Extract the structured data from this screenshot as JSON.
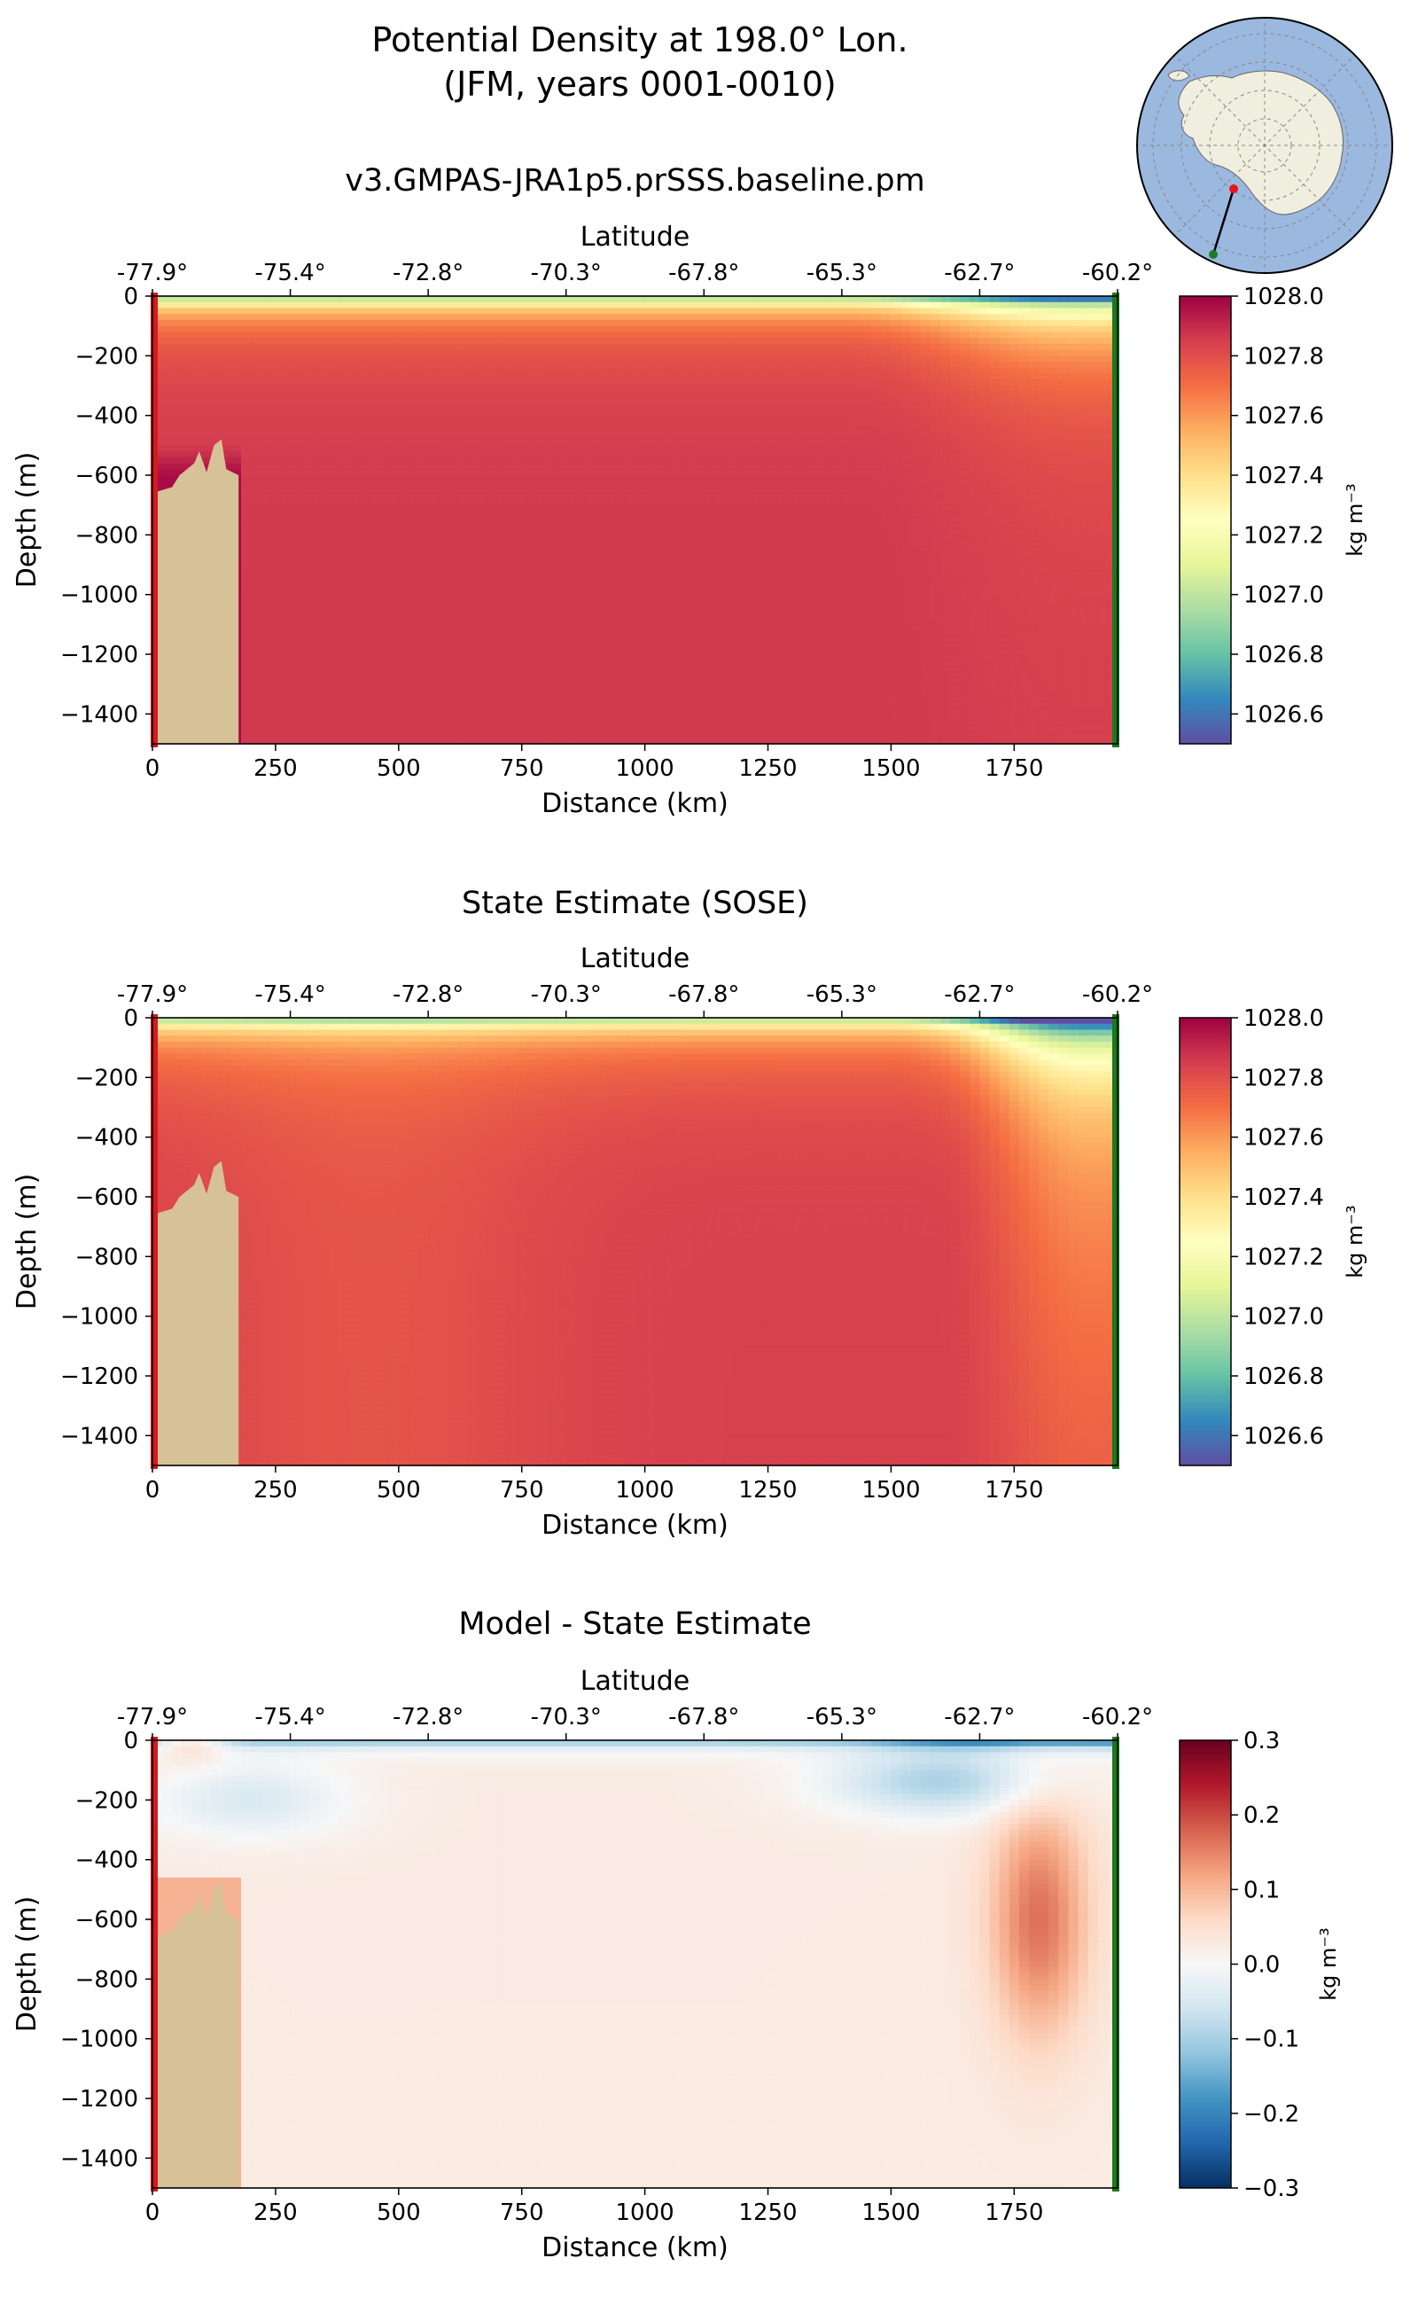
{
  "figure": {
    "title_line1": "Potential Density at 198.0° Lon.",
    "title_line2": "(JFM, years 0001-0010)"
  },
  "map_inset": {
    "ocean_color": "#9bb8df",
    "land_color": "#efeedf",
    "transect_start_color": "#e8161b",
    "transect_end_color": "#1f7a2d"
  },
  "chart_data": [
    {
      "type": "heatmap",
      "title": "v3.GMPAS-JRA1p5.prSSS.baseline.pm",
      "xlabel": "Distance (km)",
      "ylabel": "Depth (m)",
      "top_axis_label": "Latitude",
      "xlim": [
        0,
        1960
      ],
      "ylim": [
        -1500,
        0
      ],
      "x_ticks": [
        0,
        250,
        500,
        750,
        1000,
        1250,
        1500,
        1750
      ],
      "y_ticks": [
        0,
        -200,
        -400,
        -600,
        -800,
        -1000,
        -1200,
        -1400
      ],
      "x_tick_labels": [
        "0",
        "250",
        "500",
        "750",
        "1000",
        "1250",
        "1500",
        "1750"
      ],
      "y_tick_labels": [
        "0",
        "−200",
        "−400",
        "−600",
        "−800",
        "−1000",
        "−1200",
        "−1400"
      ],
      "lat_tick_labels": [
        "-77.9°",
        "-75.4°",
        "-72.8°",
        "-70.3°",
        "-67.8°",
        "-65.3°",
        "-62.7°",
        "-60.2°"
      ],
      "colorbar": {
        "label": "kg m⁻³",
        "range": [
          1026.5,
          1028.0
        ],
        "ticks": [
          1026.6,
          1026.8,
          1027.0,
          1027.2,
          1027.4,
          1027.6,
          1027.8,
          1028.0
        ],
        "tick_labels": [
          "1026.6",
          "1026.8",
          "1027.0",
          "1027.2",
          "1027.4",
          "1027.6",
          "1027.8",
          "1028.0"
        ],
        "colormap": "Spectral_r"
      }
    },
    {
      "type": "heatmap",
      "title": "State Estimate (SOSE)",
      "xlabel": "Distance (km)",
      "ylabel": "Depth (m)",
      "top_axis_label": "Latitude",
      "xlim": [
        0,
        1960
      ],
      "ylim": [
        -1500,
        0
      ],
      "x_ticks": [
        0,
        250,
        500,
        750,
        1000,
        1250,
        1500,
        1750
      ],
      "y_ticks": [
        0,
        -200,
        -400,
        -600,
        -800,
        -1000,
        -1200,
        -1400
      ],
      "x_tick_labels": [
        "0",
        "250",
        "500",
        "750",
        "1000",
        "1250",
        "1500",
        "1750"
      ],
      "y_tick_labels": [
        "0",
        "−200",
        "−400",
        "−600",
        "−800",
        "−1000",
        "−1200",
        "−1400"
      ],
      "lat_tick_labels": [
        "-77.9°",
        "-75.4°",
        "-72.8°",
        "-70.3°",
        "-67.8°",
        "-65.3°",
        "-62.7°",
        "-60.2°"
      ],
      "colorbar": {
        "label": "kg m⁻³",
        "range": [
          1026.5,
          1028.0
        ],
        "ticks": [
          1026.6,
          1026.8,
          1027.0,
          1027.2,
          1027.4,
          1027.6,
          1027.8,
          1028.0
        ],
        "tick_labels": [
          "1026.6",
          "1026.8",
          "1027.0",
          "1027.2",
          "1027.4",
          "1027.6",
          "1027.8",
          "1028.0"
        ],
        "colormap": "Spectral_r"
      }
    },
    {
      "type": "heatmap",
      "title": "Model - State Estimate",
      "xlabel": "Distance (km)",
      "ylabel": "Depth (m)",
      "top_axis_label": "Latitude",
      "xlim": [
        0,
        1960
      ],
      "ylim": [
        -1500,
        0
      ],
      "x_ticks": [
        0,
        250,
        500,
        750,
        1000,
        1250,
        1500,
        1750
      ],
      "y_ticks": [
        0,
        -200,
        -400,
        -600,
        -800,
        -1000,
        -1200,
        -1400
      ],
      "x_tick_labels": [
        "0",
        "250",
        "500",
        "750",
        "1000",
        "1250",
        "1500",
        "1750"
      ],
      "y_tick_labels": [
        "0",
        "−200",
        "−400",
        "−600",
        "−800",
        "−1000",
        "−1200",
        "−1400"
      ],
      "lat_tick_labels": [
        "-77.9°",
        "-75.4°",
        "-72.8°",
        "-70.3°",
        "-67.8°",
        "-65.3°",
        "-62.7°",
        "-60.2°"
      ],
      "colorbar": {
        "label": "kg m⁻³",
        "range": [
          -0.3,
          0.3
        ],
        "ticks": [
          -0.3,
          -0.2,
          -0.1,
          0.0,
          0.1,
          0.2,
          0.3
        ],
        "tick_labels": [
          "−0.3",
          "−0.2",
          "−0.1",
          "0.0",
          "0.1",
          "0.2",
          "0.3"
        ],
        "colormap": "RdBu_r"
      }
    }
  ],
  "seafloor": {
    "color": "#d7c196",
    "shelf_edge_distance_km": 175,
    "shelf_profile": [
      [
        0,
        -660
      ],
      [
        20,
        -650
      ],
      [
        40,
        -640
      ],
      [
        55,
        -600
      ],
      [
        85,
        -560
      ],
      [
        95,
        -520
      ],
      [
        110,
        -590
      ],
      [
        125,
        -500
      ],
      [
        140,
        -480
      ],
      [
        150,
        -580
      ],
      [
        175,
        -600
      ]
    ]
  },
  "section_edges": {
    "start_color": "#d7191c",
    "end_color": "#1a7a1a"
  }
}
